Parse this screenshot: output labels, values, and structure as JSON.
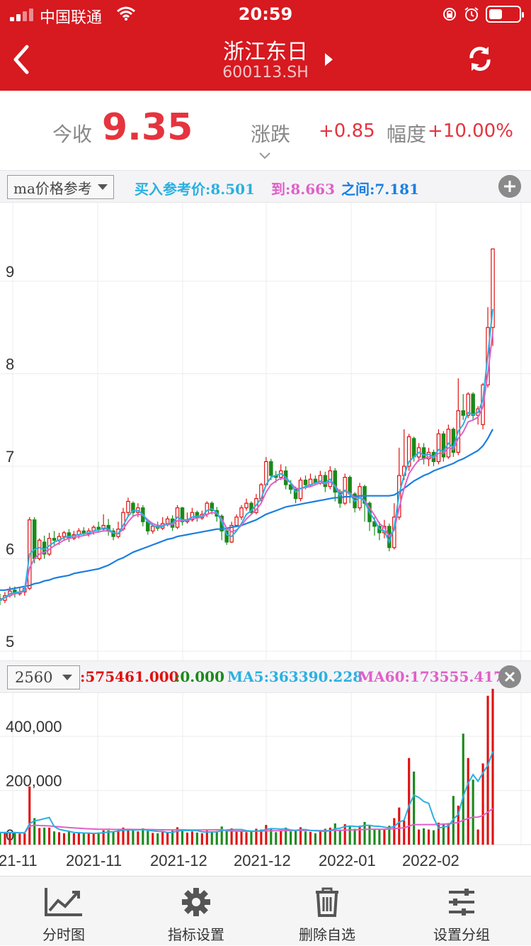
{
  "status_bar": {
    "carrier": "中国联通",
    "time": "20:59",
    "battery_percent": 45
  },
  "nav": {
    "title": "浙江东日",
    "code": "600113.SH"
  },
  "quote": {
    "close_label": "今收",
    "close_value": "9.35",
    "change_label": "涨跌",
    "change_value": "+0.85",
    "amplitude_label": "幅度",
    "amplitude_value": "+10.00%"
  },
  "ma_bar": {
    "selector": "ma价格参考",
    "buy_ref": "买入参考价:8.501",
    "to": "到:8.663",
    "between": "之间:7.181",
    "buy_ref_color": "#2ab0e0",
    "to_color": "#e060c8",
    "between_color": "#1a7fe0"
  },
  "vol_bar": {
    "selector": "2560",
    "vol": ":575461.000",
    "zero": ":0.000",
    "ma5": "MA5:363390.228",
    "ma60": "MA60:173555.417",
    "vol_color": "#e01010",
    "zero_color": "#1a8a1a",
    "ma5_color": "#2ab0e0",
    "ma60_color": "#e060c8"
  },
  "colors": {
    "up": "#e01010",
    "down": "#1a8a1a",
    "ma_slow": "#1a7fe0",
    "ma_fast": "#2ab0e0",
    "ma_mid": "#e060c8",
    "brand": "#d71920"
  },
  "chart_data": [
    {
      "type": "candlestick",
      "y_ticks": [
        "5",
        "6",
        "7",
        "8",
        "9"
      ],
      "ylim": [
        4.9,
        9.85
      ],
      "grid": true,
      "candles": [
        [
          5.57,
          5.55,
          5.62,
          5.5
        ],
        [
          5.55,
          5.6,
          5.64,
          5.52
        ],
        [
          5.6,
          5.65,
          5.7,
          5.58
        ],
        [
          5.66,
          5.62,
          5.7,
          5.58
        ],
        [
          5.62,
          5.64,
          5.69,
          5.6
        ],
        [
          5.64,
          5.68,
          5.7,
          5.6
        ],
        [
          5.68,
          6.42,
          6.45,
          5.66
        ],
        [
          6.42,
          6.0,
          6.45,
          5.95
        ],
        [
          6.0,
          6.2,
          6.22,
          5.98
        ],
        [
          6.18,
          6.05,
          6.25,
          6.0
        ],
        [
          6.05,
          6.22,
          6.28,
          6.03
        ],
        [
          6.22,
          6.2,
          6.3,
          6.15
        ],
        [
          6.2,
          6.24,
          6.28,
          6.15
        ],
        [
          6.24,
          6.28,
          6.3,
          6.2
        ],
        [
          6.28,
          6.22,
          6.32,
          6.18
        ],
        [
          6.22,
          6.26,
          6.3,
          6.2
        ],
        [
          6.26,
          6.3,
          6.33,
          6.22
        ],
        [
          6.3,
          6.27,
          6.34,
          6.25
        ],
        [
          6.27,
          6.3,
          6.33,
          6.24
        ],
        [
          6.3,
          6.34,
          6.36,
          6.26
        ],
        [
          6.34,
          6.32,
          6.4,
          6.28
        ],
        [
          6.32,
          6.36,
          6.48,
          6.3
        ],
        [
          6.36,
          6.3,
          6.43,
          6.25
        ],
        [
          6.3,
          6.24,
          6.33,
          6.2
        ],
        [
          6.24,
          6.32,
          6.4,
          6.22
        ],
        [
          6.32,
          6.5,
          6.55,
          6.3
        ],
        [
          6.5,
          6.62,
          6.66,
          6.46
        ],
        [
          6.6,
          6.5,
          6.62,
          6.45
        ],
        [
          6.5,
          6.55,
          6.6,
          6.45
        ],
        [
          6.55,
          6.4,
          6.58,
          6.35
        ],
        [
          6.4,
          6.3,
          6.42,
          6.26
        ],
        [
          6.3,
          6.35,
          6.38,
          6.27
        ],
        [
          6.35,
          6.33,
          6.4,
          6.3
        ],
        [
          6.33,
          6.38,
          6.45,
          6.31
        ],
        [
          6.38,
          6.43,
          6.46,
          6.35
        ],
        [
          6.43,
          6.34,
          6.47,
          6.3
        ],
        [
          6.34,
          6.55,
          6.58,
          6.32
        ],
        [
          6.55,
          6.4,
          6.56,
          6.36
        ],
        [
          6.4,
          6.42,
          6.5,
          6.38
        ],
        [
          6.42,
          6.5,
          6.55,
          6.4
        ],
        [
          6.5,
          6.44,
          6.52,
          6.4
        ],
        [
          6.44,
          6.48,
          6.52,
          6.42
        ],
        [
          6.48,
          6.6,
          6.62,
          6.45
        ],
        [
          6.6,
          6.52,
          6.62,
          6.48
        ],
        [
          6.52,
          6.46,
          6.56,
          6.4
        ],
        [
          6.46,
          6.3,
          6.48,
          6.2
        ],
        [
          6.3,
          6.18,
          6.34,
          6.15
        ],
        [
          6.18,
          6.36,
          6.4,
          6.17
        ],
        [
          6.36,
          6.45,
          6.48,
          6.34
        ],
        [
          6.45,
          6.55,
          6.58,
          6.42
        ],
        [
          6.55,
          6.6,
          6.65,
          6.52
        ],
        [
          6.6,
          6.5,
          6.62,
          6.48
        ],
        [
          6.5,
          6.65,
          6.7,
          6.48
        ],
        [
          6.65,
          6.8,
          6.82,
          6.62
        ],
        [
          6.8,
          7.05,
          7.1,
          6.78
        ],
        [
          7.05,
          6.9,
          7.08,
          6.85
        ],
        [
          6.9,
          6.88,
          6.95,
          6.82
        ],
        [
          6.88,
          6.95,
          7.02,
          6.85
        ],
        [
          6.95,
          6.8,
          7.0,
          6.75
        ],
        [
          6.8,
          6.75,
          6.85,
          6.7
        ],
        [
          6.75,
          6.65,
          6.78,
          6.6
        ],
        [
          6.65,
          6.85,
          6.88,
          6.62
        ],
        [
          6.85,
          6.8,
          6.9,
          6.75
        ],
        [
          6.8,
          6.86,
          6.92,
          6.78
        ],
        [
          6.86,
          6.82,
          6.9,
          6.8
        ],
        [
          6.82,
          6.9,
          6.95,
          6.8
        ],
        [
          6.9,
          6.78,
          6.94,
          6.72
        ],
        [
          6.78,
          6.95,
          7.0,
          6.75
        ],
        [
          6.95,
          6.72,
          6.98,
          6.62
        ],
        [
          6.72,
          6.6,
          6.75,
          6.55
        ],
        [
          6.6,
          6.88,
          6.92,
          6.58
        ],
        [
          6.88,
          6.7,
          6.9,
          6.6
        ],
        [
          6.7,
          6.55,
          6.72,
          6.5
        ],
        [
          6.55,
          6.78,
          6.82,
          6.52
        ],
        [
          6.78,
          6.6,
          6.8,
          6.4
        ],
        [
          6.6,
          6.4,
          6.62,
          6.3
        ],
        [
          6.4,
          6.35,
          6.45,
          6.25
        ],
        [
          6.35,
          6.28,
          6.4,
          6.2
        ],
        [
          6.28,
          6.35,
          6.42,
          6.22
        ],
        [
          6.35,
          6.12,
          6.38,
          6.08
        ],
        [
          6.12,
          6.45,
          6.6,
          6.1
        ],
        [
          6.45,
          6.9,
          7.2,
          6.42
        ],
        [
          6.9,
          7.0,
          7.4,
          6.85
        ],
        [
          7.0,
          7.32,
          7.35,
          6.95
        ],
        [
          7.3,
          7.1,
          7.32,
          7.05
        ],
        [
          7.1,
          7.2,
          7.25,
          7.05
        ],
        [
          7.2,
          7.08,
          7.25,
          7.02
        ],
        [
          7.08,
          7.15,
          7.2,
          7.0
        ],
        [
          7.15,
          7.05,
          7.18,
          7.0
        ],
        [
          7.05,
          7.35,
          7.4,
          7.02
        ],
        [
          7.35,
          7.1,
          7.38,
          7.05
        ],
        [
          7.1,
          7.4,
          7.45,
          7.08
        ],
        [
          7.4,
          7.15,
          7.42,
          7.1
        ],
        [
          7.15,
          7.6,
          7.95,
          7.12
        ],
        [
          7.6,
          7.55,
          7.78,
          7.5
        ],
        [
          7.55,
          7.78,
          7.8,
          7.52
        ],
        [
          7.78,
          7.55,
          7.8,
          7.5
        ],
        [
          7.55,
          7.62,
          7.65,
          7.45
        ],
        [
          7.45,
          7.88,
          7.9,
          7.4
        ],
        [
          7.88,
          8.5,
          8.72,
          7.85
        ],
        [
          8.5,
          9.35,
          9.35,
          8.3
        ]
      ],
      "ma_fast": [
        5.55,
        5.58,
        5.62,
        5.63,
        5.64,
        5.66,
        6.05,
        6.1,
        6.12,
        6.1,
        6.14,
        6.18,
        6.2,
        6.23,
        6.24,
        6.25,
        6.26,
        6.27,
        6.28,
        6.3,
        6.31,
        6.33,
        6.32,
        6.28,
        6.27,
        6.36,
        6.46,
        6.52,
        6.52,
        6.48,
        6.4,
        6.36,
        6.34,
        6.35,
        6.38,
        6.38,
        6.45,
        6.42,
        6.42,
        6.45,
        6.46,
        6.46,
        6.52,
        6.54,
        6.5,
        6.4,
        6.26,
        6.24,
        6.3,
        6.38,
        6.48,
        6.52,
        6.58,
        6.65,
        6.8,
        6.88,
        6.9,
        6.92,
        6.88,
        6.82,
        6.72,
        6.76,
        6.78,
        6.8,
        6.82,
        6.84,
        6.82,
        6.86,
        6.78,
        6.68,
        6.74,
        6.7,
        6.62,
        6.66,
        6.62,
        6.5,
        6.42,
        6.32,
        6.3,
        6.18,
        6.34,
        6.7,
        6.9,
        7.05,
        7.1,
        7.15,
        7.12,
        7.13,
        7.1,
        7.18,
        7.16,
        7.25,
        7.2,
        7.38,
        7.45,
        7.58,
        7.56,
        7.58,
        7.72,
        8.2,
        8.7
      ],
      "ma_mid": [
        5.56,
        5.58,
        5.6,
        5.62,
        5.63,
        5.65,
        5.9,
        6.0,
        6.05,
        6.07,
        6.1,
        6.14,
        6.17,
        6.2,
        6.22,
        6.23,
        6.24,
        6.25,
        6.26,
        6.28,
        6.29,
        6.3,
        6.3,
        6.28,
        6.27,
        6.32,
        6.4,
        6.46,
        6.48,
        6.47,
        6.42,
        6.38,
        6.36,
        6.36,
        6.37,
        6.37,
        6.41,
        6.41,
        6.41,
        6.43,
        6.44,
        6.45,
        6.48,
        6.5,
        6.49,
        6.43,
        6.33,
        6.29,
        6.31,
        6.36,
        6.43,
        6.48,
        6.53,
        6.6,
        6.72,
        6.8,
        6.84,
        6.87,
        6.86,
        6.82,
        6.76,
        6.76,
        6.77,
        6.78,
        6.8,
        6.82,
        6.81,
        6.83,
        6.79,
        6.72,
        6.73,
        6.71,
        6.66,
        6.66,
        6.63,
        6.55,
        6.47,
        6.38,
        6.34,
        6.24,
        6.31,
        6.55,
        6.76,
        6.92,
        7.0,
        7.07,
        7.08,
        7.1,
        7.09,
        7.14,
        7.14,
        7.2,
        7.18,
        7.3,
        7.37,
        7.48,
        7.5,
        7.53,
        7.64,
        8.0,
        8.45
      ],
      "ma_slow": [
        5.66,
        5.66,
        5.67,
        5.68,
        5.69,
        5.7,
        5.71,
        5.73,
        5.74,
        5.76,
        5.77,
        5.79,
        5.8,
        5.81,
        5.82,
        5.84,
        5.85,
        5.86,
        5.87,
        5.88,
        5.89,
        5.91,
        5.93,
        5.96,
        5.99,
        6.01,
        6.04,
        6.07,
        6.09,
        6.11,
        6.13,
        6.15,
        6.17,
        6.19,
        6.21,
        6.22,
        6.24,
        6.25,
        6.26,
        6.27,
        6.28,
        6.29,
        6.3,
        6.31,
        6.32,
        6.32,
        6.33,
        6.34,
        6.35,
        6.36,
        6.38,
        6.4,
        6.42,
        6.45,
        6.48,
        6.5,
        6.52,
        6.54,
        6.56,
        6.57,
        6.58,
        6.59,
        6.6,
        6.61,
        6.62,
        6.63,
        6.64,
        6.65,
        6.66,
        6.66,
        6.67,
        6.67,
        6.67,
        6.68,
        6.68,
        6.68,
        6.68,
        6.68,
        6.68,
        6.68,
        6.69,
        6.72,
        6.76,
        6.8,
        6.84,
        6.87,
        6.9,
        6.92,
        6.95,
        6.97,
        6.99,
        7.01,
        7.03,
        7.06,
        7.08,
        7.11,
        7.14,
        7.17,
        7.22,
        7.3,
        7.4
      ]
    },
    {
      "type": "bar",
      "y_ticks": [
        "0",
        "200,000",
        "400,000"
      ],
      "ylim": [
        0,
        560000
      ],
      "x_tick_labels": [
        "21-11",
        "2021-11",
        "2021-12",
        "2021-12",
        "2022-01",
        "2022-02"
      ],
      "grid": true
    }
  ]
}
